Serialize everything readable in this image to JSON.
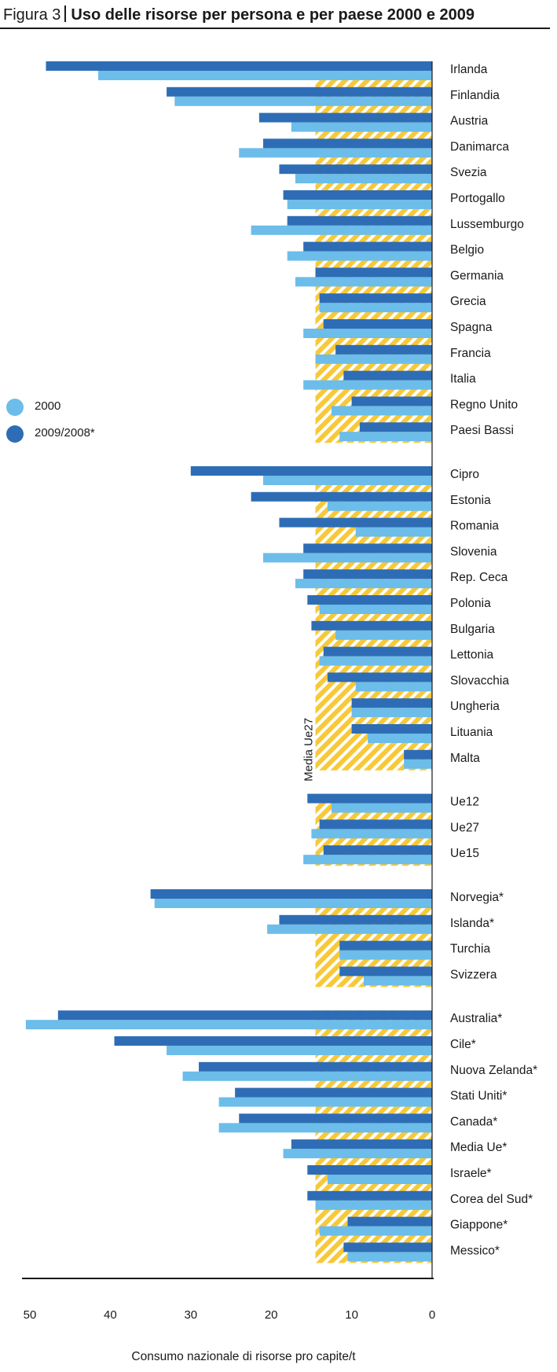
{
  "title": {
    "prefix": "Figura 3",
    "main": "Uso delle risorse per persona e per paese 2000 e 2009"
  },
  "legend": [
    {
      "label": "2000",
      "color": "#6cbde9"
    },
    {
      "label": "2009/2008*",
      "color": "#2e6db5"
    }
  ],
  "colors": {
    "light": "#6cbde9",
    "dark": "#2e6db5",
    "hatch": "#f7c93a"
  },
  "chart_data": {
    "type": "bar",
    "orientation": "horizontal",
    "xlabel": "Consumo nazionale di risorse pro capite/t",
    "xlim": [
      50,
      0
    ],
    "x_ticks": [
      50,
      40,
      30,
      20,
      10,
      0
    ],
    "reference_line": {
      "label": "Media Ue27",
      "value": 14.5
    },
    "series": [
      {
        "name": "2000",
        "color": "#6cbde9"
      },
      {
        "name": "2009/2008*",
        "color": "#2e6db5"
      }
    ],
    "categories": [
      "Irlanda",
      "Finlandia",
      "Austria",
      "Danimarca",
      "Svezia",
      "Portogallo",
      "Lussemburgo",
      "Belgio",
      "Germania",
      "Grecia",
      "Spagna",
      "Francia",
      "Italia",
      "Regno Unito",
      "Paesi Bassi",
      "Cipro",
      "Estonia",
      "Romania",
      "Slovenia",
      "Rep. Ceca",
      "Polonia",
      "Bulgaria",
      "Lettonia",
      "Slovacchia",
      "Ungheria",
      "Lituania",
      "Malta",
      "Ue12",
      "Ue27",
      "Ue15",
      "Norvegia*",
      "Islanda*",
      "Turchia",
      "Svizzera",
      "Australia*",
      "Cile*",
      "Nuova Zelanda*",
      "Stati Uniti*",
      "Canada*",
      "Media Ue*",
      "Israele*",
      "Corea del Sud*",
      "Giappone*",
      "Messico*"
    ],
    "values_2000": [
      41.5,
      32,
      17.5,
      24,
      17,
      18,
      22.5,
      18,
      17,
      14,
      16,
      14.5,
      16,
      12.5,
      11.5,
      21,
      13,
      9.5,
      21,
      17,
      14,
      12,
      14,
      9.5,
      10,
      8,
      3.5,
      12.5,
      15,
      16,
      34.5,
      20.5,
      11.5,
      8.5,
      50.5,
      33,
      31,
      26.5,
      26.5,
      18.5,
      13,
      14.5,
      14,
      10.5
    ],
    "values_2009": [
      48,
      33,
      21.5,
      21,
      19,
      18.5,
      18,
      16,
      14.5,
      14,
      13.5,
      12,
      11,
      10,
      9,
      30,
      22.5,
      19,
      16,
      16,
      15.5,
      15,
      13.5,
      13,
      10,
      10,
      3.5,
      15.5,
      14,
      13.5,
      35,
      19,
      11.5,
      11.5,
      46.5,
      39.5,
      29,
      24.5,
      24,
      17.5,
      15.5,
      15.5,
      10.5,
      11
    ],
    "groups": [
      15,
      12,
      3,
      4,
      10
    ]
  }
}
